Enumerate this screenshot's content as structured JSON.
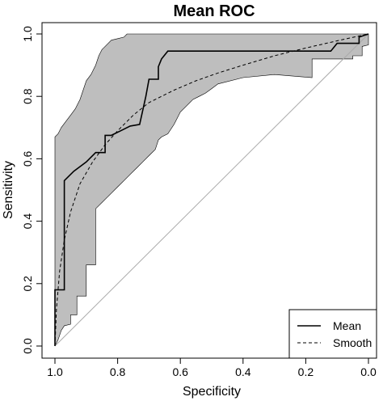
{
  "chart_data": {
    "type": "line",
    "title": "Mean ROC",
    "xlabel": "Specificity",
    "ylabel": "Sensitivity",
    "xlim": [
      1.0,
      0.0
    ],
    "ylim": [
      0.0,
      1.0
    ],
    "x_reversed": true,
    "xticks": [
      "1.0",
      "0.8",
      "0.6",
      "0.4",
      "0.2",
      "0.0"
    ],
    "yticks": [
      "0.0",
      "0.2",
      "0.4",
      "0.6",
      "0.8",
      "1.0"
    ],
    "grid": false,
    "legend_position": "bottom-right",
    "band": {
      "fill": "#bebebe",
      "upper": [
        [
          1.0,
          0.0
        ],
        [
          1.0,
          0.67
        ],
        [
          0.99,
          0.68
        ],
        [
          0.98,
          0.7
        ],
        [
          0.965,
          0.72
        ],
        [
          0.95,
          0.74
        ],
        [
          0.935,
          0.76
        ],
        [
          0.92,
          0.79
        ],
        [
          0.91,
          0.82
        ],
        [
          0.9,
          0.85
        ],
        [
          0.885,
          0.87
        ],
        [
          0.87,
          0.9
        ],
        [
          0.86,
          0.93
        ],
        [
          0.85,
          0.95
        ],
        [
          0.84,
          0.96
        ],
        [
          0.82,
          0.98
        ],
        [
          0.8,
          0.985
        ],
        [
          0.78,
          0.99
        ],
        [
          0.77,
          1.0
        ],
        [
          0.0,
          1.0
        ]
      ],
      "lower": [
        [
          0.0,
          0.965
        ],
        [
          0.02,
          0.96
        ],
        [
          0.02,
          0.93
        ],
        [
          0.05,
          0.93
        ],
        [
          0.05,
          0.92
        ],
        [
          0.18,
          0.92
        ],
        [
          0.18,
          0.86
        ],
        [
          0.3,
          0.87
        ],
        [
          0.4,
          0.86
        ],
        [
          0.48,
          0.84
        ],
        [
          0.5,
          0.825
        ],
        [
          0.52,
          0.81
        ],
        [
          0.54,
          0.8
        ],
        [
          0.56,
          0.79
        ],
        [
          0.58,
          0.77
        ],
        [
          0.6,
          0.75
        ],
        [
          0.61,
          0.73
        ],
        [
          0.62,
          0.71
        ],
        [
          0.64,
          0.68
        ],
        [
          0.66,
          0.67
        ],
        [
          0.67,
          0.66
        ],
        [
          0.68,
          0.63
        ],
        [
          0.7,
          0.61
        ],
        [
          0.72,
          0.59
        ],
        [
          0.74,
          0.57
        ],
        [
          0.76,
          0.55
        ],
        [
          0.78,
          0.53
        ],
        [
          0.8,
          0.51
        ],
        [
          0.82,
          0.49
        ],
        [
          0.84,
          0.47
        ],
        [
          0.86,
          0.45
        ],
        [
          0.87,
          0.44
        ],
        [
          0.87,
          0.26
        ],
        [
          0.9,
          0.26
        ],
        [
          0.9,
          0.16
        ],
        [
          0.93,
          0.16
        ],
        [
          0.93,
          0.1
        ],
        [
          0.95,
          0.1
        ],
        [
          0.95,
          0.07
        ],
        [
          0.97,
          0.065
        ],
        [
          0.98,
          0.05
        ],
        [
          0.99,
          0.02
        ],
        [
          1.0,
          0.0
        ]
      ]
    },
    "series": [
      {
        "name": "Mean",
        "style": "solid",
        "points": [
          [
            1.0,
            0.0
          ],
          [
            1.0,
            0.18
          ],
          [
            0.97,
            0.18
          ],
          [
            0.97,
            0.53
          ],
          [
            0.94,
            0.56
          ],
          [
            0.9,
            0.59
          ],
          [
            0.87,
            0.62
          ],
          [
            0.84,
            0.62
          ],
          [
            0.84,
            0.675
          ],
          [
            0.82,
            0.675
          ],
          [
            0.79,
            0.69
          ],
          [
            0.76,
            0.705
          ],
          [
            0.73,
            0.71
          ],
          [
            0.71,
            0.8
          ],
          [
            0.7,
            0.855
          ],
          [
            0.67,
            0.855
          ],
          [
            0.67,
            0.895
          ],
          [
            0.66,
            0.92
          ],
          [
            0.64,
            0.945
          ],
          [
            0.12,
            0.945
          ],
          [
            0.1,
            0.97
          ],
          [
            0.03,
            0.97
          ],
          [
            0.03,
            0.99
          ],
          [
            0.0,
            1.0
          ]
        ]
      },
      {
        "name": "Smooth",
        "style": "dashed",
        "points": [
          [
            1.0,
            0.0
          ],
          [
            0.995,
            0.12
          ],
          [
            0.985,
            0.24
          ],
          [
            0.97,
            0.34
          ],
          [
            0.95,
            0.43
          ],
          [
            0.92,
            0.52
          ],
          [
            0.88,
            0.59
          ],
          [
            0.84,
            0.645
          ],
          [
            0.8,
            0.69
          ],
          [
            0.75,
            0.74
          ],
          [
            0.7,
            0.78
          ],
          [
            0.62,
            0.82
          ],
          [
            0.55,
            0.85
          ],
          [
            0.48,
            0.875
          ],
          [
            0.4,
            0.9
          ],
          [
            0.3,
            0.93
          ],
          [
            0.2,
            0.955
          ],
          [
            0.1,
            0.978
          ],
          [
            0.0,
            1.0
          ]
        ]
      }
    ],
    "reference_line": [
      [
        1.0,
        0.0
      ],
      [
        0.0,
        1.0
      ]
    ]
  },
  "legend": {
    "items": [
      {
        "label": "Mean",
        "style": "solid"
      },
      {
        "label": "Smooth",
        "style": "dashed"
      }
    ]
  }
}
